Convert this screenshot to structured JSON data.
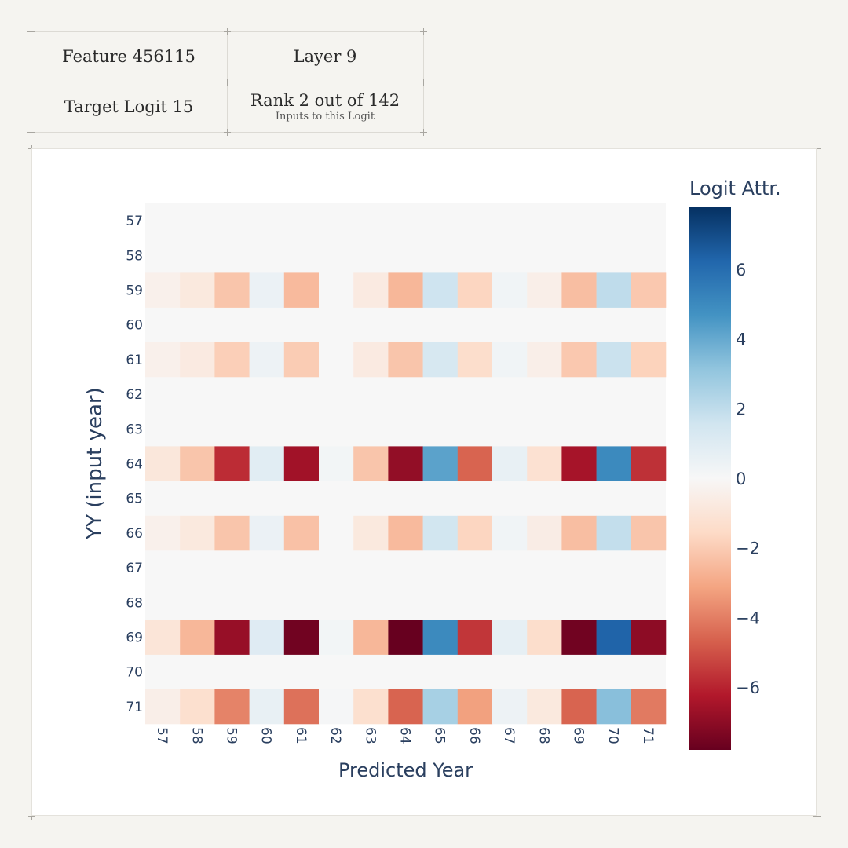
{
  "header": {
    "feature": "Feature 456115",
    "layer": "Layer 9",
    "target": "Target Logit 15",
    "rank": "Rank 2 out of 142",
    "rank_sub": "Inputs to this Logit"
  },
  "colors": {
    "page_bg": "#f5f4f0",
    "chart_bg": "#ffffff",
    "empty_cell": "#f7f7f7",
    "text": "#2a3f5f"
  },
  "chart_data": {
    "type": "heatmap",
    "title": "",
    "xlabel": "Predicted Year",
    "ylabel": "YY (input year)",
    "colorbar_title": "Logit Attr.",
    "colorscale": "RdBu",
    "zlim": [
      -7.8,
      7.8
    ],
    "colorbar_ticks": [
      6,
      4,
      2,
      0,
      -2,
      -4,
      -6
    ],
    "x": [
      "57",
      "58",
      "59",
      "60",
      "61",
      "62",
      "63",
      "64",
      "65",
      "66",
      "67",
      "68",
      "69",
      "70",
      "71"
    ],
    "y": [
      "57",
      "58",
      "59",
      "60",
      "61",
      "62",
      "63",
      "64",
      "65",
      "66",
      "67",
      "68",
      "69",
      "70",
      "71"
    ],
    "z": [
      [
        null,
        null,
        null,
        null,
        null,
        null,
        null,
        null,
        null,
        null,
        null,
        null,
        null,
        null,
        null
      ],
      [
        null,
        null,
        null,
        null,
        null,
        null,
        null,
        null,
        null,
        null,
        null,
        null,
        null,
        null,
        null
      ],
      [
        -0.4,
        -0.8,
        -2.2,
        0.5,
        -2.5,
        0,
        -0.7,
        -2.6,
        1.6,
        -1.7,
        0.3,
        -0.5,
        -2.4,
        2.0,
        -2.1
      ],
      [
        null,
        null,
        null,
        null,
        null,
        null,
        null,
        null,
        null,
        null,
        null,
        null,
        null,
        null,
        null
      ],
      [
        -0.4,
        -0.7,
        -1.9,
        0.4,
        -2.0,
        0,
        -0.7,
        -2.2,
        1.3,
        -1.4,
        0.3,
        -0.5,
        -2.1,
        1.7,
        -1.8
      ],
      [
        null,
        null,
        null,
        null,
        null,
        null,
        null,
        null,
        null,
        null,
        null,
        null,
        null,
        null,
        null
      ],
      [
        null,
        null,
        null,
        null,
        null,
        null,
        null,
        null,
        null,
        null,
        null,
        null,
        null,
        null,
        null
      ],
      [
        -0.9,
        -2.2,
        -5.8,
        0.9,
        -6.6,
        0.2,
        -2.2,
        -6.9,
        4.2,
        -4.6,
        0.6,
        -1.2,
        -6.5,
        5.0,
        -5.7
      ],
      [
        null,
        null,
        null,
        null,
        null,
        null,
        null,
        null,
        null,
        null,
        null,
        null,
        null,
        null,
        null
      ],
      [
        -0.4,
        -0.8,
        -2.2,
        0.5,
        -2.3,
        0,
        -0.8,
        -2.5,
        1.5,
        -1.7,
        0.3,
        -0.6,
        -2.4,
        1.9,
        -2.2
      ],
      [
        null,
        null,
        null,
        null,
        null,
        null,
        null,
        null,
        null,
        null,
        null,
        null,
        null,
        null,
        null
      ],
      [
        null,
        null,
        null,
        null,
        null,
        null,
        null,
        null,
        null,
        null,
        null,
        null,
        null,
        null,
        null
      ],
      [
        -1.0,
        -2.6,
        -6.8,
        1.0,
        -7.6,
        0.2,
        -2.6,
        -7.8,
        5.0,
        -5.6,
        0.7,
        -1.4,
        -7.6,
        6.3,
        -7.0
      ],
      [
        null,
        null,
        null,
        null,
        null,
        null,
        null,
        null,
        null,
        null,
        null,
        null,
        null,
        null,
        null
      ],
      [
        -0.5,
        -1.3,
        -3.9,
        0.6,
        -4.3,
        0.1,
        -1.3,
        -4.6,
        2.6,
        -3.2,
        0.4,
        -0.8,
        -4.6,
        3.3,
        -4.1
      ]
    ]
  }
}
